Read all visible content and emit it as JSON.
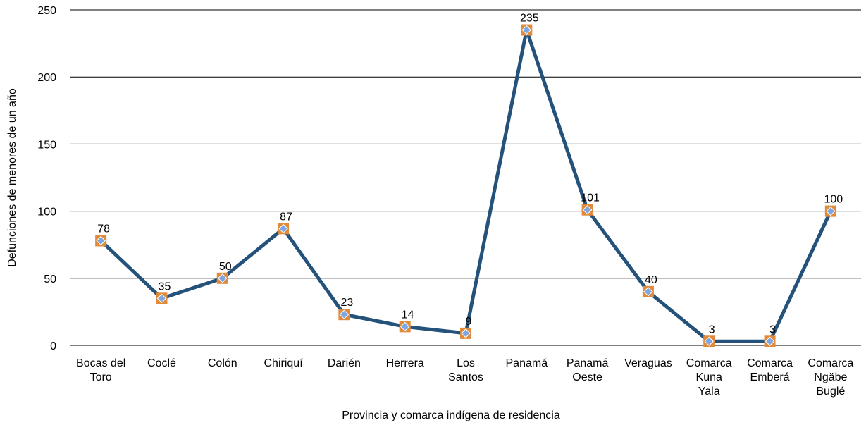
{
  "chart_data": {
    "type": "line",
    "title": "",
    "xlabel": "Provincia y comarca indígena de residencia",
    "ylabel": "Defunciones de menores de un año",
    "ylim": [
      0,
      250
    ],
    "yticks": [
      0,
      50,
      100,
      150,
      200,
      250
    ],
    "grid": true,
    "categories": [
      [
        "Bocas del",
        "Toro"
      ],
      [
        "Coclé"
      ],
      [
        "Colón"
      ],
      [
        "Chiriquí"
      ],
      [
        "Darién"
      ],
      [
        "Herrera"
      ],
      [
        "Los",
        "Santos"
      ],
      [
        "Panamá"
      ],
      [
        "Panamá",
        "Oeste"
      ],
      [
        "Veraguas"
      ],
      [
        "Comarca",
        "Kuna",
        "Yala"
      ],
      [
        "Comarca",
        "Emberá"
      ],
      [
        "Comarca",
        "Ngäbe",
        "Buglé"
      ]
    ],
    "values": [
      78,
      35,
      50,
      87,
      23,
      14,
      9,
      235,
      101,
      40,
      3,
      3,
      100
    ],
    "colors": {
      "line": "#24527a",
      "marker_outer": "#e08a3c",
      "marker_inner": "#7ea6e0",
      "grid": "#000000"
    }
  }
}
